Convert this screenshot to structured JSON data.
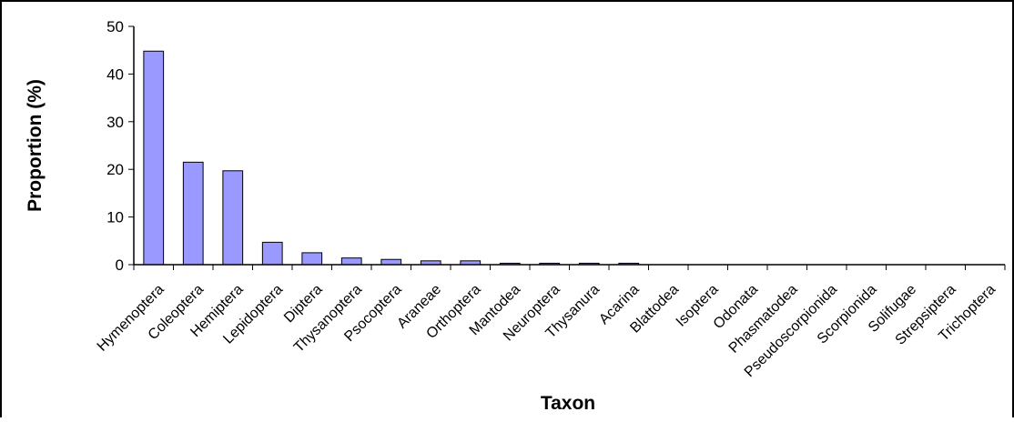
{
  "chart_data": {
    "type": "bar",
    "xlabel": "Taxon",
    "ylabel": "Proportion (%)",
    "ylim": [
      0,
      50
    ],
    "yticks": [
      0,
      10,
      20,
      30,
      40,
      50
    ],
    "grid": false,
    "legend": "none",
    "bar_color": "#9999ff",
    "categories": [
      "Hymenoptera",
      "Coleoptera",
      "Hemiptera",
      "Lepidoptera",
      "Diptera",
      "Thysanoptera",
      "Psocoptera",
      "Araneae",
      "Orthoptera",
      "Mantodea",
      "Neuroptera",
      "Thysanura",
      "Acarina",
      "Blattodea",
      "Isoptera",
      "Odonata",
      "Phasmatodea",
      "Pseudoscorpionida",
      "Scorpionida",
      "Solifugae",
      "Strepsiptera",
      "Trichoptera"
    ],
    "values": [
      44.8,
      21.5,
      19.7,
      4.7,
      2.5,
      1.4,
      1.1,
      0.8,
      0.8,
      0.3,
      0.3,
      0.3,
      0.3,
      0,
      0,
      0,
      0,
      0,
      0,
      0,
      0,
      0
    ]
  }
}
